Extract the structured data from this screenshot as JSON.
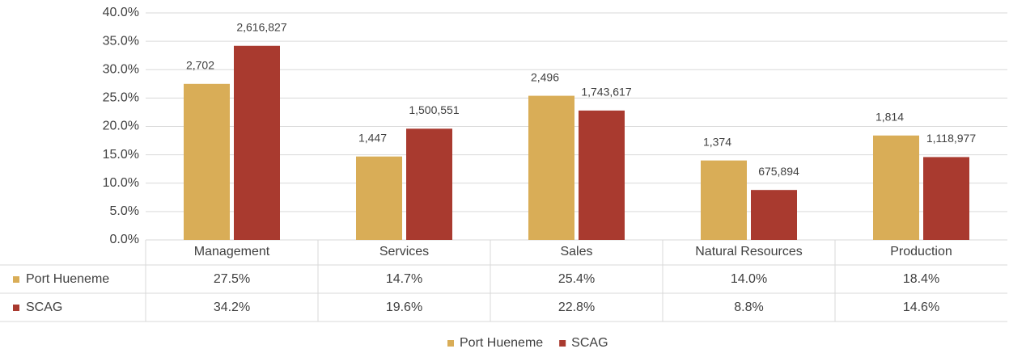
{
  "chart_data": {
    "type": "bar",
    "categories": [
      "Management",
      "Services",
      "Sales",
      "Natural Resources",
      "Production"
    ],
    "series": [
      {
        "name": "Port Hueneme",
        "color": "#d9ad57",
        "values": [
          27.5,
          14.7,
          25.4,
          14.0,
          18.4
        ],
        "value_labels": [
          "27.5%",
          "14.7%",
          "25.4%",
          "14.0%",
          "18.4%"
        ],
        "count_labels": [
          "2,702",
          "1,447",
          "2,496",
          "1,374",
          "1,814"
        ]
      },
      {
        "name": "SCAG",
        "color": "#a93a2f",
        "values": [
          34.2,
          19.6,
          22.8,
          8.8,
          14.6
        ],
        "value_labels": [
          "34.2%",
          "19.6%",
          "22.8%",
          "8.8%",
          "14.6%"
        ],
        "count_labels": [
          "2,616,827",
          "1,500,551",
          "1,743,617",
          "675,894",
          "1,118,977"
        ]
      }
    ],
    "ylim": [
      0,
      40
    ],
    "yticks": [
      {
        "value": 0,
        "label": "0.0%"
      },
      {
        "value": 5,
        "label": "5.0%"
      },
      {
        "value": 10,
        "label": "10.0%"
      },
      {
        "value": 15,
        "label": "15.0%"
      },
      {
        "value": 20,
        "label": "20.0%"
      },
      {
        "value": 25,
        "label": "25.0%"
      },
      {
        "value": 30,
        "label": "30.0%"
      },
      {
        "value": 35,
        "label": "35.0%"
      },
      {
        "value": 40,
        "label": "40.0%"
      }
    ],
    "grid": true,
    "legend": "bottom"
  }
}
